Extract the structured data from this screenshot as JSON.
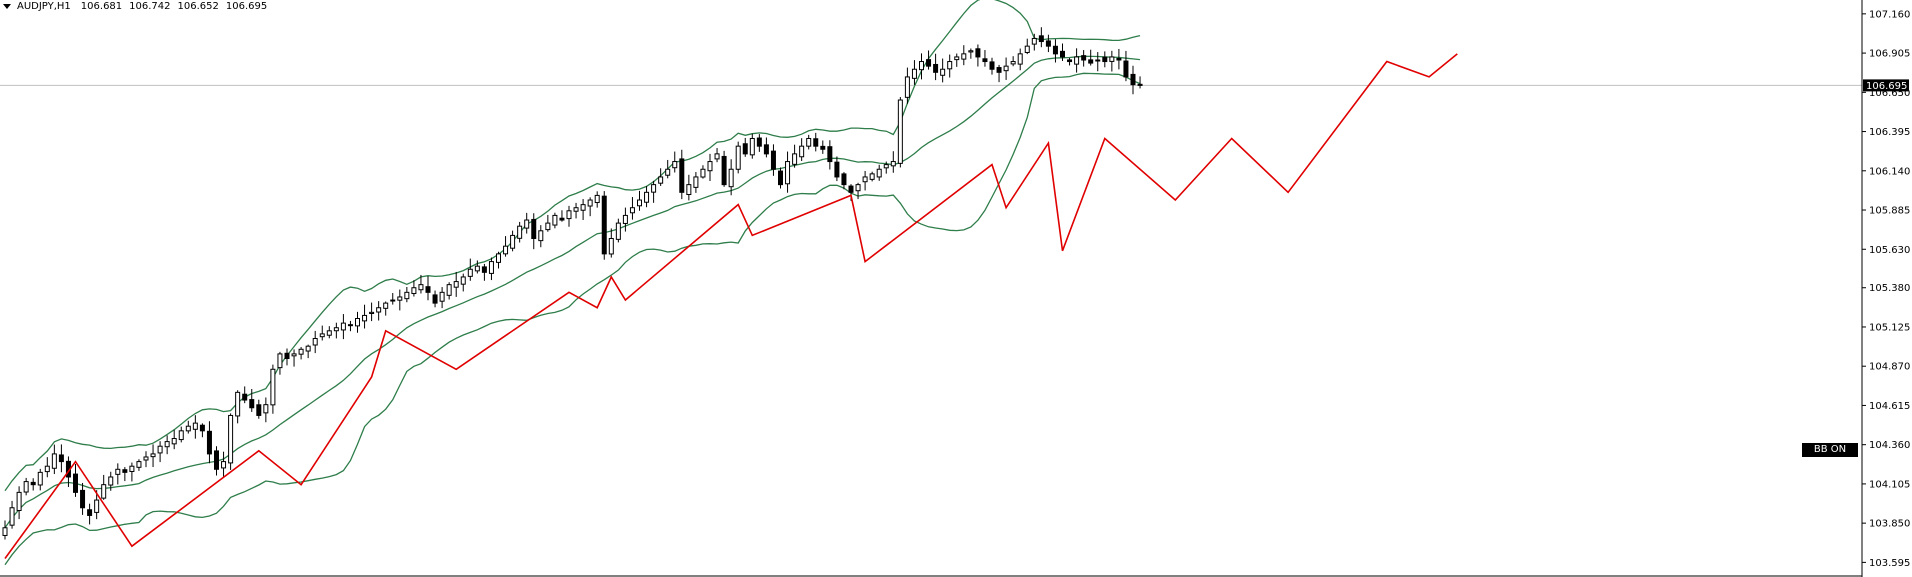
{
  "header": {
    "symbol_timeframe": "AUDJPY,H1",
    "open": "106.681",
    "high": "106.742",
    "low": "106.652",
    "close": "106.695"
  },
  "badge": {
    "label": "BB ON"
  },
  "colors": {
    "candle": "#000000",
    "bollinger": "#2e7d4a",
    "zigzag": "#e00000",
    "price_line": "#c0c0c0",
    "axis": "#000000"
  },
  "chart_data": {
    "type": "candlestick",
    "symbol": "AUDJPY",
    "timeframe": "H1",
    "ylim": [
      103.5,
      107.25
    ],
    "y_ticks": [
      "107.160",
      "106.905",
      "106.650",
      "106.395",
      "106.140",
      "105.885",
      "105.630",
      "105.380",
      "105.125",
      "104.870",
      "104.615",
      "104.360",
      "104.105",
      "103.850",
      "103.595"
    ],
    "current_price": "106.695",
    "indicators": [
      "Bollinger Bands",
      "ZigZag"
    ],
    "closes": [
      103.82,
      103.95,
      104.05,
      104.12,
      104.1,
      104.18,
      104.22,
      104.3,
      104.25,
      104.15,
      104.05,
      103.95,
      103.9,
      104.0,
      104.1,
      104.15,
      104.2,
      104.18,
      104.22,
      104.25,
      104.28,
      104.3,
      104.35,
      104.38,
      104.4,
      104.45,
      104.48,
      104.5,
      104.45,
      104.3,
      104.2,
      104.25,
      104.55,
      104.7,
      104.65,
      104.6,
      104.55,
      104.62,
      104.85,
      104.95,
      104.92,
      104.95,
      104.98,
      105.0,
      105.05,
      105.08,
      105.1,
      105.12,
      105.15,
      105.14,
      105.18,
      105.2,
      105.22,
      105.25,
      105.28,
      105.3,
      105.32,
      105.35,
      105.38,
      105.4,
      105.35,
      105.28,
      105.35,
      105.4,
      105.42,
      105.45,
      105.5,
      105.52,
      105.48,
      105.55,
      105.6,
      105.65,
      105.72,
      105.78,
      105.82,
      105.7,
      105.75,
      105.8,
      105.85,
      105.82,
      105.88,
      105.9,
      105.92,
      105.95,
      105.98,
      105.6,
      105.7,
      105.8,
      105.85,
      105.9,
      105.95,
      106.0,
      106.05,
      106.1,
      106.15,
      106.2,
      106.0,
      106.05,
      106.1,
      106.15,
      106.2,
      106.25,
      106.05,
      106.15,
      106.3,
      106.25,
      106.35,
      106.3,
      106.25,
      106.15,
      106.05,
      106.2,
      106.25,
      106.3,
      106.35,
      106.3,
      106.28,
      106.2,
      106.1,
      106.05,
      106.0,
      106.05,
      106.1,
      106.12,
      106.15,
      106.18,
      106.2,
      106.6,
      106.75,
      106.8,
      106.85,
      106.82,
      106.78,
      106.8,
      106.85,
      106.88,
      106.9,
      106.92,
      106.88,
      106.85,
      106.8,
      106.78,
      106.82,
      106.85,
      106.9,
      106.95,
      107.0,
      106.98,
      106.95,
      106.9,
      106.88,
      106.85,
      106.88,
      106.86,
      106.84,
      106.86,
      106.85,
      106.88,
      106.86,
      106.75,
      106.7,
      106.695
    ],
    "zigzag_points": [
      {
        "i": 0,
        "price": 103.62
      },
      {
        "i": 10,
        "price": 104.25
      },
      {
        "i": 18,
        "price": 103.7
      },
      {
        "i": 36,
        "price": 104.32
      },
      {
        "i": 42,
        "price": 104.1
      },
      {
        "i": 52,
        "price": 104.8
      },
      {
        "i": 54,
        "price": 105.1
      },
      {
        "i": 64,
        "price": 104.85
      },
      {
        "i": 80,
        "price": 105.35
      },
      {
        "i": 84,
        "price": 105.25
      },
      {
        "i": 86,
        "price": 105.45
      },
      {
        "i": 88,
        "price": 105.3
      },
      {
        "i": 104,
        "price": 105.92
      },
      {
        "i": 106,
        "price": 105.72
      },
      {
        "i": 120,
        "price": 105.98
      },
      {
        "i": 122,
        "price": 105.55
      },
      {
        "i": 140,
        "price": 106.18
      },
      {
        "i": 142,
        "price": 105.9
      },
      {
        "i": 148,
        "price": 106.32
      },
      {
        "i": 150,
        "price": 105.62
      },
      {
        "i": 156,
        "price": 106.35
      },
      {
        "i": 166,
        "price": 105.95
      },
      {
        "i": 174,
        "price": 106.35
      },
      {
        "i": 182,
        "price": 106.0
      },
      {
        "i": 196,
        "price": 106.85
      },
      {
        "i": 202,
        "price": 106.75
      },
      {
        "i": 206,
        "price": 106.9
      }
    ]
  }
}
